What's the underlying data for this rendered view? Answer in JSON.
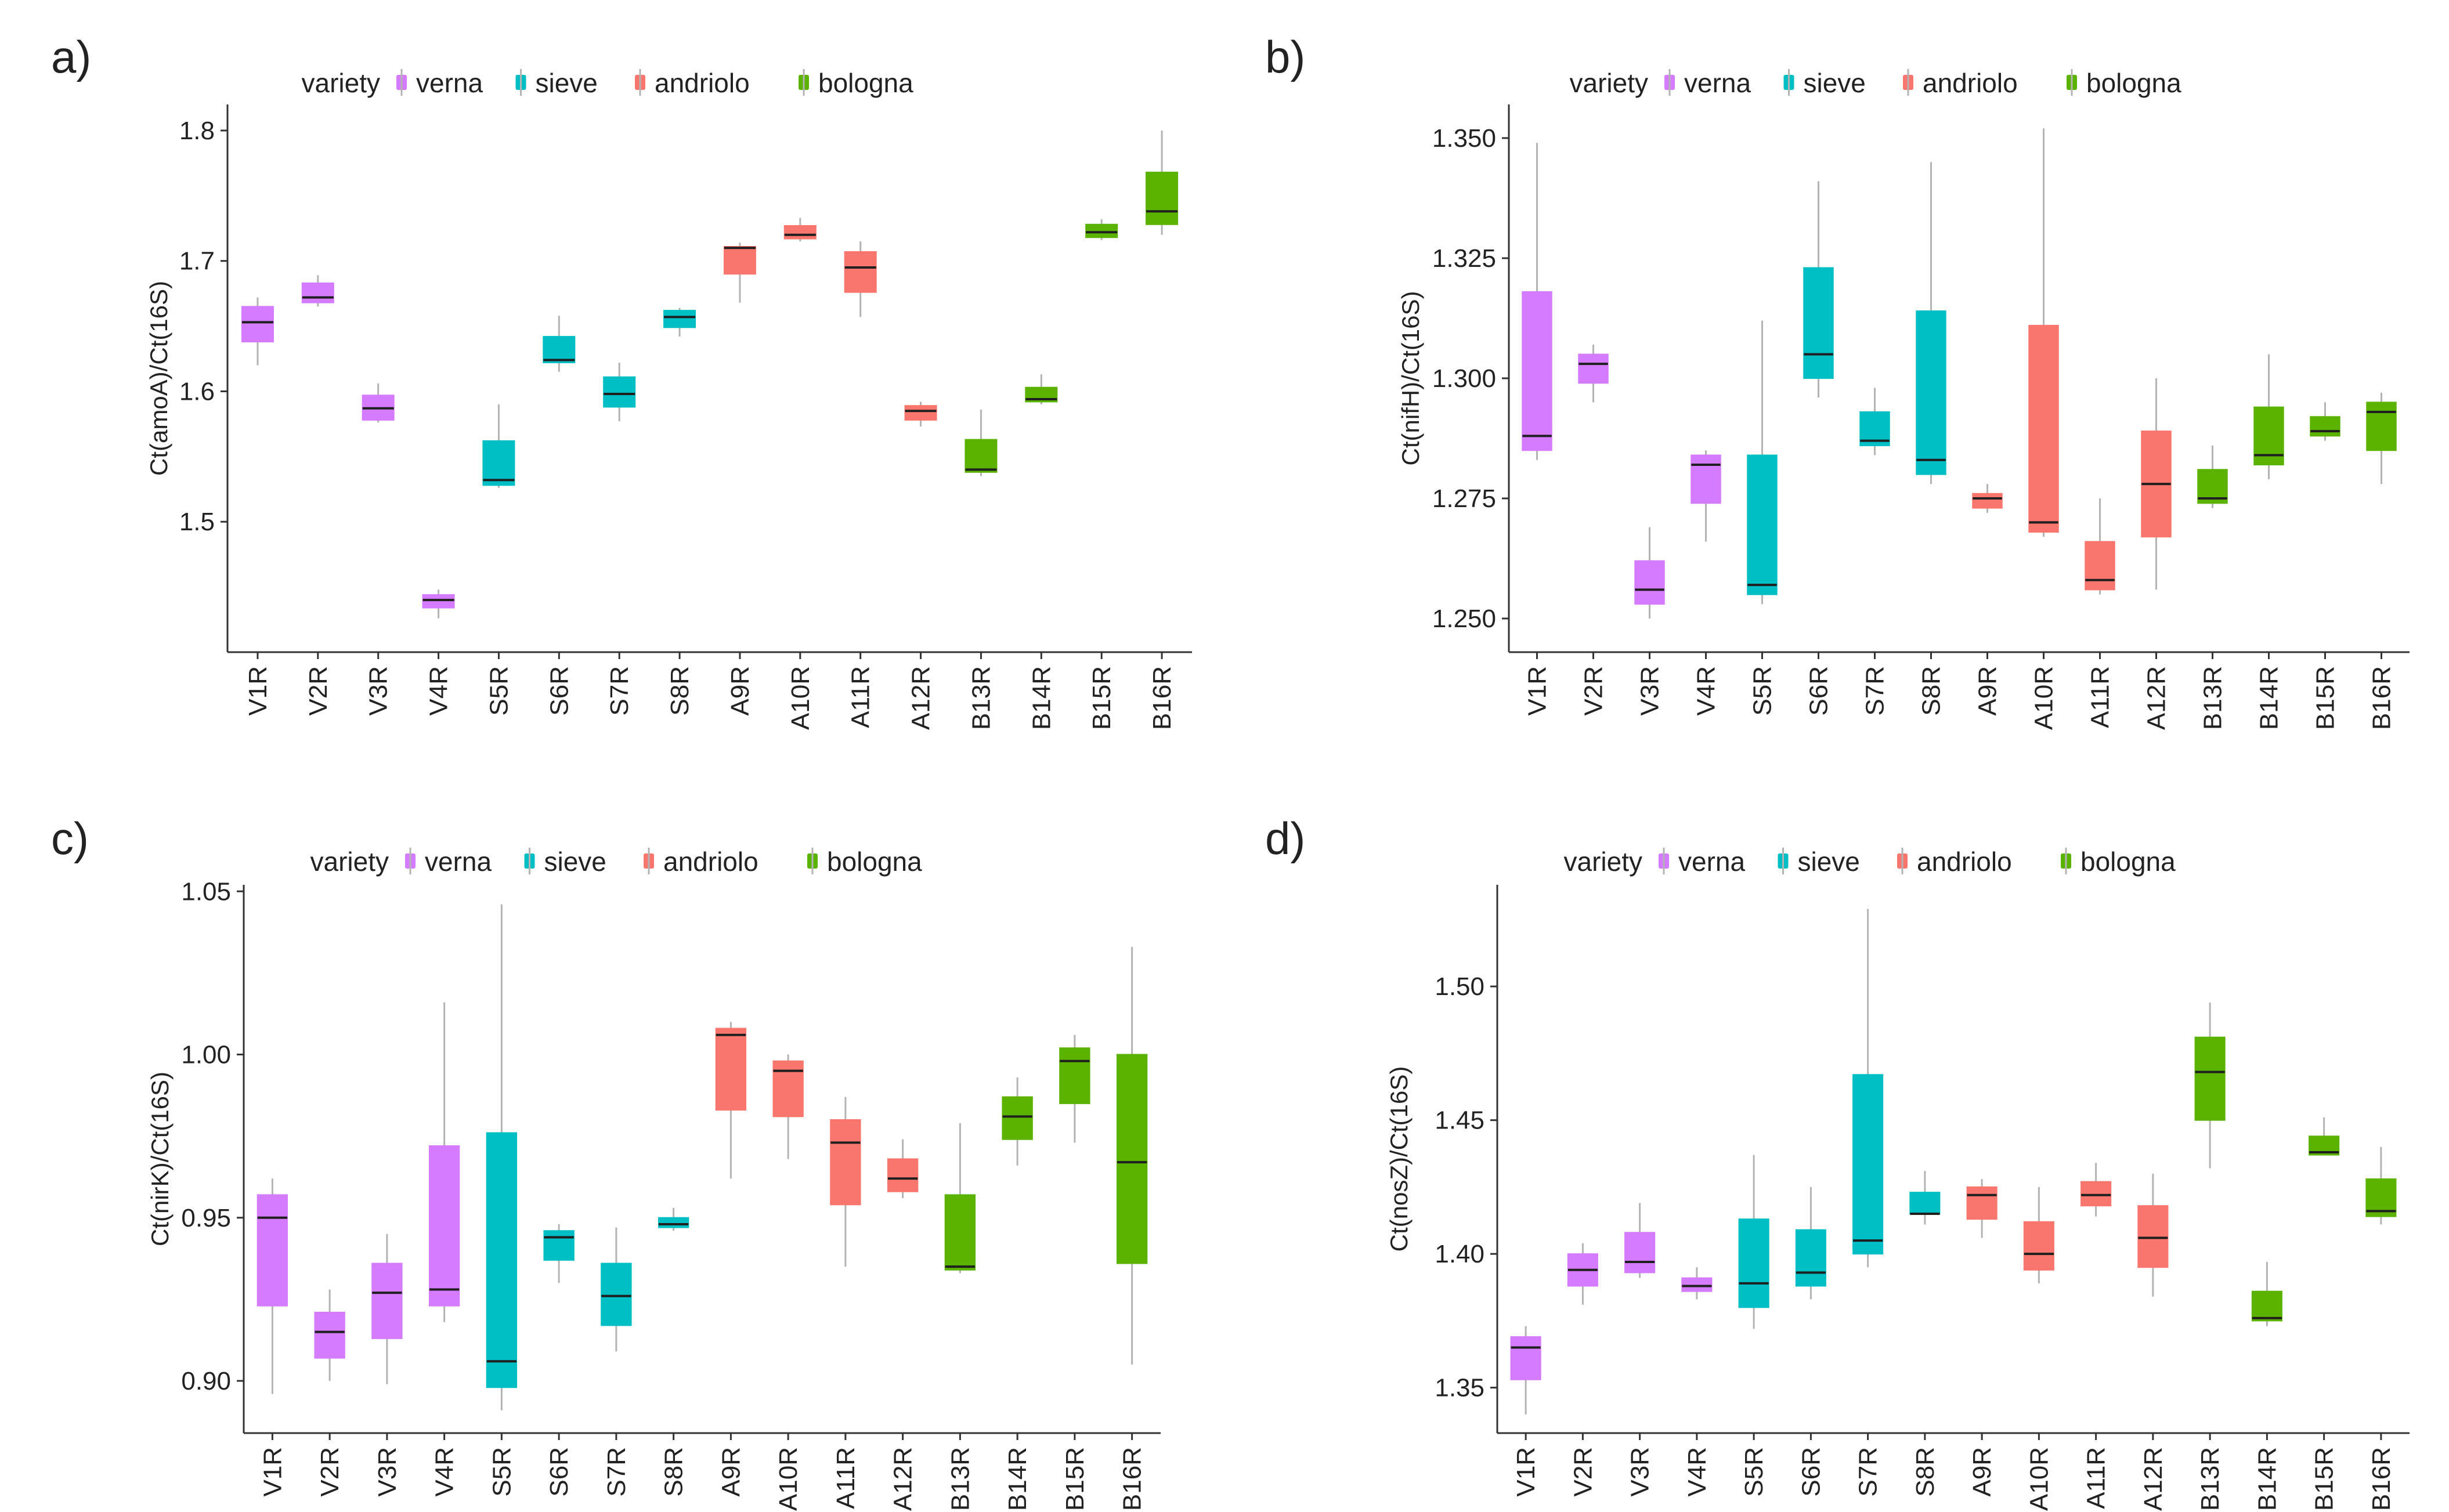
{
  "legend": {
    "title": "variety",
    "entries": [
      {
        "label": "verna",
        "color": "#D57BFF"
      },
      {
        "label": "sieve",
        "color": "#00BFC4"
      },
      {
        "label": "andriolo",
        "color": "#F8766D"
      },
      {
        "label": "bologna",
        "color": "#5BB300"
      }
    ]
  },
  "colors": {
    "axis": "#333333",
    "whisker": "#b3b3b3",
    "median": "#1f1f1f",
    "text": "#222222"
  },
  "chart_data": [
    {
      "panel": "a)",
      "type": "box",
      "ylabel": "Ct(amoA)/Ct(16S)",
      "ylim": [
        1.4,
        1.82
      ],
      "yticks": [
        "1.5",
        "1.6",
        "1.7",
        "1.8"
      ],
      "categories": [
        "V1R",
        "V2R",
        "V3R",
        "V4R",
        "S5R",
        "S6R",
        "S7R",
        "S8R",
        "A9R",
        "A10R",
        "A11R",
        "A12R",
        "B13R",
        "B14R",
        "B15R",
        "B16R"
      ],
      "groups": [
        0,
        0,
        0,
        0,
        1,
        1,
        1,
        1,
        2,
        2,
        2,
        2,
        3,
        3,
        3,
        3
      ],
      "boxes": [
        [
          1.62,
          1.638,
          1.653,
          1.665,
          1.672
        ],
        [
          1.665,
          1.668,
          1.672,
          1.683,
          1.689
        ],
        [
          1.576,
          1.578,
          1.587,
          1.597,
          1.606
        ],
        [
          1.426,
          1.434,
          1.44,
          1.444,
          1.448
        ],
        [
          1.526,
          1.528,
          1.532,
          1.562,
          1.59
        ],
        [
          1.615,
          1.622,
          1.624,
          1.642,
          1.658
        ],
        [
          1.577,
          1.588,
          1.598,
          1.611,
          1.622
        ],
        [
          1.642,
          1.649,
          1.657,
          1.662,
          1.664
        ],
        [
          1.668,
          1.69,
          1.71,
          1.711,
          1.714
        ],
        [
          1.715,
          1.717,
          1.72,
          1.727,
          1.733
        ],
        [
          1.657,
          1.676,
          1.695,
          1.707,
          1.715
        ],
        [
          1.573,
          1.578,
          1.585,
          1.589,
          1.592
        ],
        [
          1.535,
          1.538,
          1.54,
          1.563,
          1.586
        ],
        [
          1.59,
          1.592,
          1.594,
          1.603,
          1.613
        ],
        [
          1.716,
          1.718,
          1.722,
          1.728,
          1.732
        ],
        [
          1.72,
          1.728,
          1.738,
          1.768,
          1.8
        ]
      ]
    },
    {
      "panel": "b)",
      "type": "box",
      "ylabel": "Ct(nifH)/Ct(16S)",
      "ylim": [
        1.243,
        1.357
      ],
      "yticks": [
        "1.250",
        "1.275",
        "1.300",
        "1.325",
        "1.350"
      ],
      "categories": [
        "V1R",
        "V2R",
        "V3R",
        "V4R",
        "S5R",
        "S6R",
        "S7R",
        "S8R",
        "A9R",
        "A10R",
        "A11R",
        "A12R",
        "B13R",
        "B14R",
        "B15R",
        "B16R"
      ],
      "groups": [
        0,
        0,
        0,
        0,
        1,
        1,
        1,
        1,
        2,
        2,
        2,
        2,
        3,
        3,
        3,
        3
      ],
      "boxes": [
        [
          1.283,
          1.285,
          1.288,
          1.318,
          1.349
        ],
        [
          1.295,
          1.299,
          1.303,
          1.305,
          1.307
        ],
        [
          1.25,
          1.253,
          1.256,
          1.262,
          1.269
        ],
        [
          1.266,
          1.274,
          1.282,
          1.284,
          1.285
        ],
        [
          1.253,
          1.255,
          1.257,
          1.284,
          1.312
        ],
        [
          1.296,
          1.3,
          1.305,
          1.323,
          1.341
        ],
        [
          1.284,
          1.286,
          1.287,
          1.293,
          1.298
        ],
        [
          1.278,
          1.28,
          1.283,
          1.314,
          1.345
        ],
        [
          1.272,
          1.273,
          1.275,
          1.276,
          1.278
        ],
        [
          1.267,
          1.268,
          1.27,
          1.311,
          1.352
        ],
        [
          1.255,
          1.256,
          1.258,
          1.266,
          1.275
        ],
        [
          1.256,
          1.267,
          1.278,
          1.289,
          1.3
        ],
        [
          1.273,
          1.274,
          1.275,
          1.281,
          1.286
        ],
        [
          1.279,
          1.282,
          1.284,
          1.294,
          1.305
        ],
        [
          1.287,
          1.288,
          1.289,
          1.292,
          1.295
        ],
        [
          1.278,
          1.285,
          1.293,
          1.295,
          1.297
        ]
      ]
    },
    {
      "panel": "c)",
      "type": "box",
      "ylabel": "Ct(nirK)/Ct(16S)",
      "ylim": [
        0.884,
        1.052
      ],
      "yticks": [
        "0.90",
        "0.95",
        "1.00",
        "1.05"
      ],
      "categories": [
        "V1R",
        "V2R",
        "V3R",
        "V4R",
        "S5R",
        "S6R",
        "S7R",
        "S8R",
        "A9R",
        "A10R",
        "A11R",
        "A12R",
        "B13R",
        "B14R",
        "B15R",
        "B16R"
      ],
      "groups": [
        0,
        0,
        0,
        0,
        1,
        1,
        1,
        1,
        2,
        2,
        2,
        2,
        3,
        3,
        3,
        3
      ],
      "boxes": [
        [
          0.896,
          0.923,
          0.95,
          0.957,
          0.962
        ],
        [
          0.9,
          0.907,
          0.915,
          0.921,
          0.928
        ],
        [
          0.899,
          0.913,
          0.927,
          0.936,
          0.945
        ],
        [
          0.918,
          0.923,
          0.928,
          0.972,
          1.016
        ],
        [
          0.891,
          0.898,
          0.906,
          0.976,
          1.046
        ],
        [
          0.93,
          0.937,
          0.944,
          0.946,
          0.948
        ],
        [
          0.909,
          0.917,
          0.926,
          0.936,
          0.947
        ],
        [
          0.946,
          0.947,
          0.948,
          0.95,
          0.953
        ],
        [
          0.962,
          0.983,
          1.006,
          1.008,
          1.01
        ],
        [
          0.968,
          0.981,
          0.995,
          0.998,
          1.0
        ],
        [
          0.935,
          0.954,
          0.973,
          0.98,
          0.987
        ],
        [
          0.956,
          0.958,
          0.962,
          0.968,
          0.974
        ],
        [
          0.933,
          0.934,
          0.935,
          0.957,
          0.979
        ],
        [
          0.966,
          0.974,
          0.981,
          0.987,
          0.993
        ],
        [
          0.973,
          0.985,
          0.998,
          1.002,
          1.006
        ],
        [
          0.905,
          0.936,
          0.967,
          1.0,
          1.033
        ]
      ]
    },
    {
      "panel": "d)",
      "type": "box",
      "ylabel": "Ct(nosZ)/Ct(16S)",
      "ylim": [
        1.333,
        1.538
      ],
      "yticks": [
        "1.35",
        "1.40",
        "1.45",
        "1.50"
      ],
      "categories": [
        "V1R",
        "V2R",
        "V3R",
        "V4R",
        "S5R",
        "S6R",
        "S7R",
        "S8R",
        "A9R",
        "A10R",
        "A11R",
        "A12R",
        "B13R",
        "B14R",
        "B15R",
        "B16R"
      ],
      "groups": [
        0,
        0,
        0,
        0,
        1,
        1,
        1,
        1,
        2,
        2,
        2,
        2,
        3,
        3,
        3,
        3
      ],
      "boxes": [
        [
          1.34,
          1.353,
          1.365,
          1.369,
          1.373
        ],
        [
          1.381,
          1.388,
          1.394,
          1.4,
          1.404
        ],
        [
          1.391,
          1.393,
          1.397,
          1.408,
          1.419
        ],
        [
          1.383,
          1.386,
          1.388,
          1.391,
          1.395
        ],
        [
          1.372,
          1.38,
          1.389,
          1.413,
          1.437
        ],
        [
          1.383,
          1.388,
          1.393,
          1.409,
          1.425
        ],
        [
          1.395,
          1.4,
          1.405,
          1.467,
          1.529
        ],
        [
          1.411,
          1.415,
          1.415,
          1.423,
          1.431
        ],
        [
          1.406,
          1.413,
          1.422,
          1.425,
          1.428
        ],
        [
          1.389,
          1.394,
          1.4,
          1.412,
          1.425
        ],
        [
          1.414,
          1.418,
          1.422,
          1.427,
          1.434
        ],
        [
          1.384,
          1.395,
          1.406,
          1.418,
          1.43
        ],
        [
          1.432,
          1.45,
          1.468,
          1.481,
          1.494
        ],
        [
          1.373,
          1.375,
          1.376,
          1.386,
          1.397
        ],
        [
          1.437,
          1.437,
          1.438,
          1.444,
          1.451
        ],
        [
          1.411,
          1.414,
          1.416,
          1.428,
          1.44
        ]
      ]
    }
  ]
}
